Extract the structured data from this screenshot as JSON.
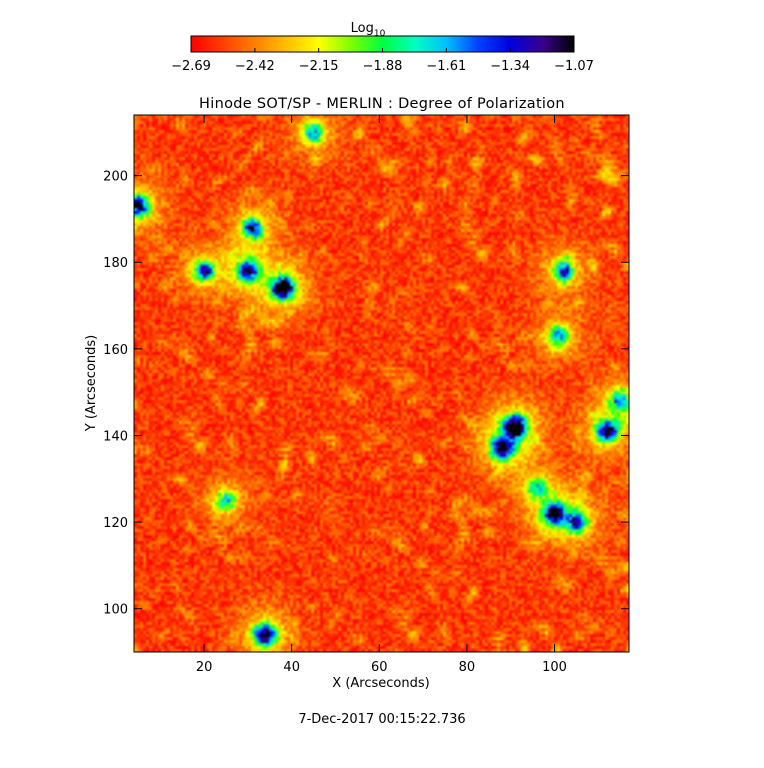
{
  "chart_data": {
    "type": "heatmap",
    "title": "Hinode SOT/SP - MERLIN : Degree of Polarization",
    "xlabel": "X (Arcseconds)",
    "ylabel": "Y (Arcseconds)",
    "xlim": [
      4,
      117
    ],
    "ylim": [
      90,
      214
    ],
    "x_ticks": [
      20,
      40,
      60,
      80,
      100
    ],
    "y_ticks": [
      100,
      120,
      140,
      160,
      180,
      200
    ],
    "colorbar": {
      "label": "Log",
      "label_subscript": "10",
      "range": [
        -2.69,
        -1.07
      ],
      "ticks": [
        "-2.69",
        "-2.42",
        "-2.15",
        "-1.88",
        "-1.61",
        "-1.34",
        "-1.07"
      ],
      "colormap": [
        "#ff0000",
        "#ff4000",
        "#ff8000",
        "#ffc000",
        "#ffff00",
        "#80ff00",
        "#00ff40",
        "#00ffc0",
        "#00c0ff",
        "#0040ff",
        "#0000e0",
        "#3a0090",
        "#000000"
      ]
    },
    "features": [
      {
        "x": 38,
        "y": 174,
        "strength": 1.0
      },
      {
        "x": 30,
        "y": 178,
        "strength": 0.75
      },
      {
        "x": 20,
        "y": 178,
        "strength": 0.6
      },
      {
        "x": 31,
        "y": 188,
        "strength": 0.65
      },
      {
        "x": 5,
        "y": 193,
        "strength": 0.8
      },
      {
        "x": 91,
        "y": 142,
        "strength": 1.0
      },
      {
        "x": 88,
        "y": 137,
        "strength": 0.8
      },
      {
        "x": 112,
        "y": 141,
        "strength": 0.8
      },
      {
        "x": 100,
        "y": 122,
        "strength": 0.85
      },
      {
        "x": 105,
        "y": 120,
        "strength": 0.6
      },
      {
        "x": 34,
        "y": 94,
        "strength": 0.9
      },
      {
        "x": 102,
        "y": 178,
        "strength": 0.6
      },
      {
        "x": 101,
        "y": 163,
        "strength": 0.55
      },
      {
        "x": 45,
        "y": 210,
        "strength": 0.55
      },
      {
        "x": 25,
        "y": 125,
        "strength": 0.5
      },
      {
        "x": 96,
        "y": 128,
        "strength": 0.45
      },
      {
        "x": 115,
        "y": 148,
        "strength": 0.55
      }
    ]
  },
  "footer": {
    "timestamp": "7-Dec-2017 00:15:22.736"
  }
}
